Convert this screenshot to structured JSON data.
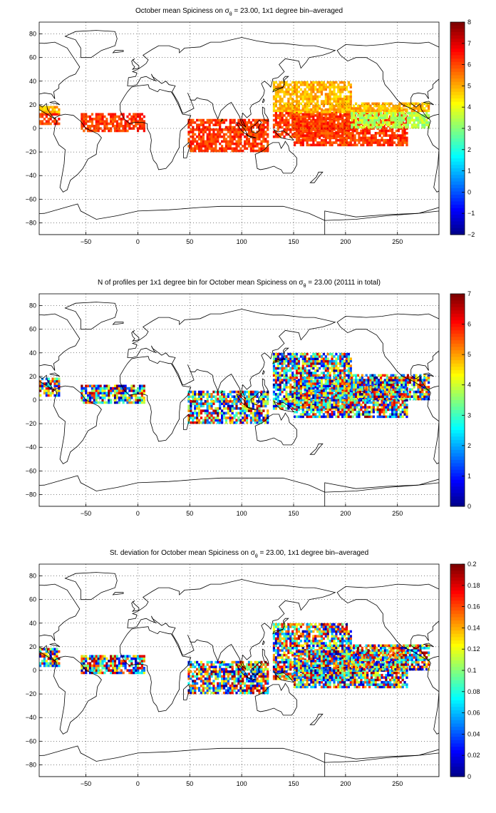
{
  "panels": [
    {
      "id": "mean",
      "title_pre": "October mean Spiciness on ",
      "title_sigma": "σ",
      "title_sub": "θ",
      "title_post": " = 23.00, 1x1 degree bin–averaged",
      "colorbar": {
        "min": -2,
        "max": 8,
        "tick_labels": [
          "8",
          "7",
          "6",
          "5",
          "4",
          "3",
          "2",
          "1",
          "0",
          "−1",
          "−2"
        ],
        "tick_values": [
          8,
          7,
          6,
          5,
          4,
          3,
          2,
          1,
          0,
          -1,
          -2
        ]
      },
      "pattern": "mean"
    },
    {
      "id": "count",
      "title_pre": "N of profiles per 1x1 degree bin for October mean Spiciness on ",
      "title_sigma": "σ",
      "title_sub": "θ",
      "title_post": " = 23.00 (20111 in total)",
      "colorbar": {
        "min": 0,
        "max": 7,
        "tick_labels": [
          "7",
          "6",
          "5",
          "4",
          "3",
          "2",
          "1",
          "0"
        ],
        "tick_values": [
          7,
          6,
          5,
          4,
          3,
          2,
          1,
          0
        ]
      },
      "pattern": "noisy"
    },
    {
      "id": "std",
      "title_pre": "St. deviation for October mean Spiciness on ",
      "title_sigma": "σ",
      "title_sub": "θ",
      "title_post": " = 23.00, 1x1 degree bin–averaged",
      "colorbar": {
        "min": 0,
        "max": 0.2,
        "tick_labels": [
          "0.2",
          "0.18",
          "0.16",
          "0.14",
          "0.12",
          "0.1",
          "0.08",
          "0.06",
          "0.04",
          "0.02",
          "0"
        ],
        "tick_values": [
          0.2,
          0.18,
          0.16,
          0.14,
          0.12,
          0.1,
          0.08,
          0.06,
          0.04,
          0.02,
          0
        ]
      },
      "pattern": "noisy"
    }
  ],
  "axes": {
    "lon_range": [
      -95,
      290
    ],
    "lat_range": [
      -90,
      90
    ],
    "x_ticks": [
      -50,
      0,
      50,
      100,
      150,
      200,
      250
    ],
    "x_tick_labels": [
      "−50",
      "0",
      "50",
      "100",
      "150",
      "200",
      "250"
    ],
    "y_ticks": [
      80,
      60,
      40,
      20,
      0,
      -20,
      -40,
      -60,
      -80
    ],
    "y_tick_labels": [
      "80",
      "60",
      "40",
      "20",
      "0",
      "−20",
      "−40",
      "−60",
      "−80"
    ],
    "grid": "dotted"
  },
  "colormap": "jet"
}
